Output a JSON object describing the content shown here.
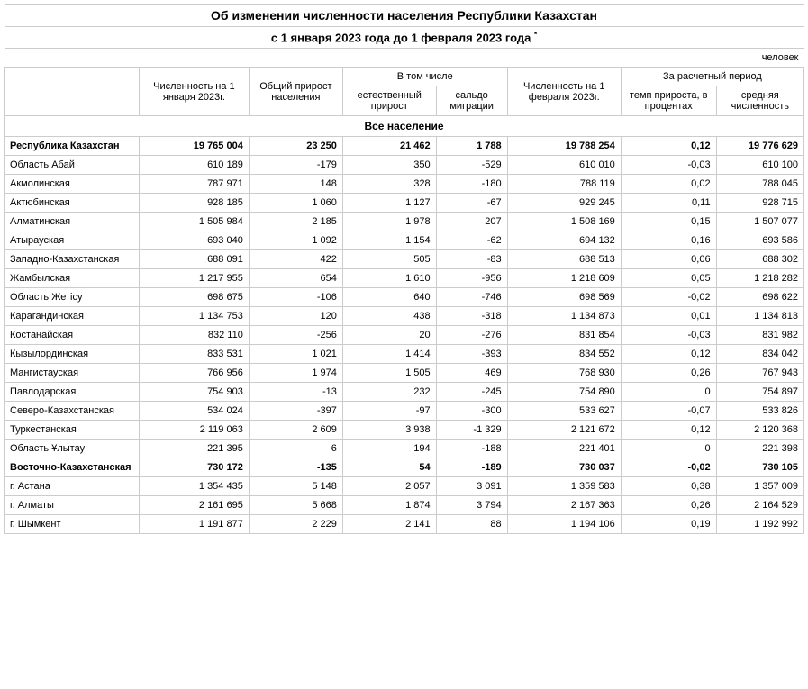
{
  "title": "Об изменении численности населения Республики Казахстан",
  "subtitle": "с 1 января 2023 года до 1 февраля 2023 года ",
  "asterisk": "*",
  "unit": "человек",
  "headers": {
    "pop_jan": "Численность на 1 января 2023г.",
    "total_growth": "Общий прирост населения",
    "including": "В том числе",
    "natural_growth": "естественный прирост",
    "migration": "сальдо миграции",
    "pop_feb": "Численность на 1 февраля 2023г.",
    "period": "За расчетный период",
    "growth_rate": "темп прироста, в процентах",
    "avg_pop": "средняя численность"
  },
  "section": "Все население",
  "rows": [
    {
      "name": "Республика Казахстан",
      "bold": true,
      "c1": "19 765 004",
      "c2": "23 250",
      "c3": "21 462",
      "c4": "1 788",
      "c5": "19 788 254",
      "c6": "0,12",
      "c7": "19 776 629"
    },
    {
      "name": "Область Абай",
      "bold": false,
      "c1": "610 189",
      "c2": "-179",
      "c3": "350",
      "c4": "-529",
      "c5": "610 010",
      "c6": "-0,03",
      "c7": "610 100"
    },
    {
      "name": "Акмолинская",
      "bold": false,
      "c1": "787 971",
      "c2": "148",
      "c3": "328",
      "c4": "-180",
      "c5": "788 119",
      "c6": "0,02",
      "c7": "788 045"
    },
    {
      "name": "Актюбинская",
      "bold": false,
      "c1": "928 185",
      "c2": "1 060",
      "c3": "1 127",
      "c4": "-67",
      "c5": "929 245",
      "c6": "0,11",
      "c7": "928 715"
    },
    {
      "name": "Алматинская",
      "bold": false,
      "c1": "1 505 984",
      "c2": "2 185",
      "c3": "1 978",
      "c4": "207",
      "c5": "1 508 169",
      "c6": "0,15",
      "c7": "1 507 077"
    },
    {
      "name": "Атырауская",
      "bold": false,
      "c1": "693 040",
      "c2": "1 092",
      "c3": "1 154",
      "c4": "-62",
      "c5": "694 132",
      "c6": "0,16",
      "c7": "693 586"
    },
    {
      "name": "Западно-Казахстанская",
      "bold": false,
      "c1": "688 091",
      "c2": "422",
      "c3": "505",
      "c4": "-83",
      "c5": "688 513",
      "c6": "0,06",
      "c7": "688 302"
    },
    {
      "name": "Жамбылская",
      "bold": false,
      "c1": "1 217 955",
      "c2": "654",
      "c3": "1 610",
      "c4": "-956",
      "c5": "1 218 609",
      "c6": "0,05",
      "c7": "1 218 282"
    },
    {
      "name": "Область Жетісу",
      "bold": false,
      "c1": "698 675",
      "c2": "-106",
      "c3": "640",
      "c4": "-746",
      "c5": "698 569",
      "c6": "-0,02",
      "c7": "698 622"
    },
    {
      "name": "Карагандинская",
      "bold": false,
      "c1": "1 134 753",
      "c2": "120",
      "c3": "438",
      "c4": "-318",
      "c5": "1 134 873",
      "c6": "0,01",
      "c7": "1 134 813"
    },
    {
      "name": "Костанайская",
      "bold": false,
      "c1": "832 110",
      "c2": "-256",
      "c3": "20",
      "c4": "-276",
      "c5": "831 854",
      "c6": "-0,03",
      "c7": "831 982"
    },
    {
      "name": "Кызылординская",
      "bold": false,
      "c1": "833 531",
      "c2": "1 021",
      "c3": "1 414",
      "c4": "-393",
      "c5": "834 552",
      "c6": "0,12",
      "c7": "834 042"
    },
    {
      "name": "Мангистауская",
      "bold": false,
      "c1": "766 956",
      "c2": "1 974",
      "c3": "1 505",
      "c4": "469",
      "c5": "768 930",
      "c6": "0,26",
      "c7": "767 943"
    },
    {
      "name": "Павлодарская",
      "bold": false,
      "c1": "754 903",
      "c2": "-13",
      "c3": "232",
      "c4": "-245",
      "c5": "754 890",
      "c6": "0",
      "c7": "754 897"
    },
    {
      "name": "Северо-Казахстанская",
      "bold": false,
      "c1": "534 024",
      "c2": "-397",
      "c3": "-97",
      "c4": "-300",
      "c5": "533 627",
      "c6": "-0,07",
      "c7": "533 826"
    },
    {
      "name": "Туркестанская",
      "bold": false,
      "c1": "2 119 063",
      "c2": "2 609",
      "c3": "3 938",
      "c4": "-1 329",
      "c5": "2 121 672",
      "c6": "0,12",
      "c7": "2 120 368"
    },
    {
      "name": "Область Ұлытау",
      "bold": false,
      "c1": "221 395",
      "c2": "6",
      "c3": "194",
      "c4": "-188",
      "c5": "221 401",
      "c6": "0",
      "c7": "221 398"
    },
    {
      "name": "Восточно-Казахстанская",
      "bold": true,
      "c1": "730 172",
      "c2": "-135",
      "c3": "54",
      "c4": "-189",
      "c5": "730 037",
      "c6": "-0,02",
      "c7": "730 105"
    },
    {
      "name": "г. Астана",
      "bold": false,
      "c1": "1 354 435",
      "c2": "5 148",
      "c3": "2 057",
      "c4": "3 091",
      "c5": "1 359 583",
      "c6": "0,38",
      "c7": "1 357 009"
    },
    {
      "name": "г. Алматы",
      "bold": false,
      "c1": "2 161 695",
      "c2": "5 668",
      "c3": "1 874",
      "c4": "3 794",
      "c5": "2 167 363",
      "c6": "0,26",
      "c7": "2 164 529"
    },
    {
      "name": "г. Шымкент",
      "bold": false,
      "c1": "1 191 877",
      "c2": "2 229",
      "c3": "2 141",
      "c4": "88",
      "c5": "1 194 106",
      "c6": "0,19",
      "c7": "1 192 992"
    }
  ]
}
